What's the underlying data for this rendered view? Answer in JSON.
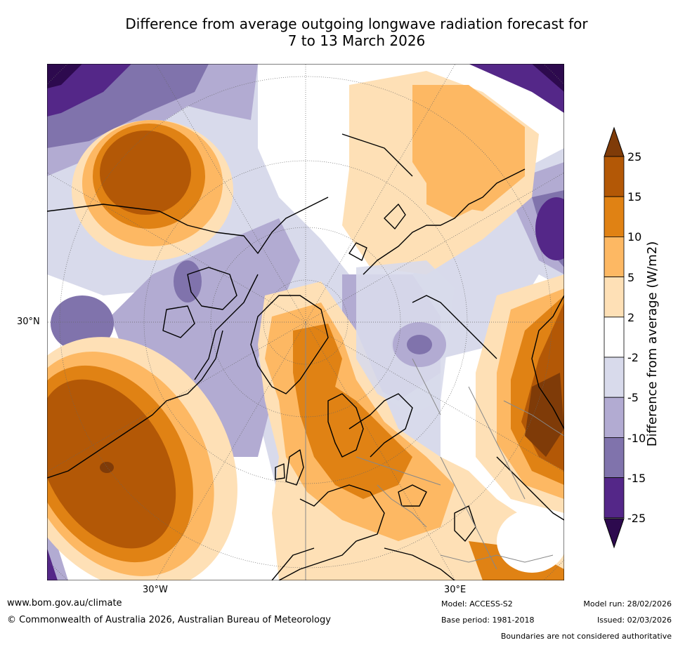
{
  "title": {
    "line1": "Difference from average outgoing longwave radiation forecast for",
    "line2": "7 to 13 March 2026"
  },
  "map": {
    "axis_labels": {
      "lat_30n": "30°N",
      "lon_30w": "30°W",
      "lon_30e": "30°E"
    },
    "colors": {
      "c_m25": "#2d0a4e",
      "c_m15": "#542788",
      "c_m10": "#8073ac",
      "c_m5": "#b2abd2",
      "c_m2": "#d8daeb",
      "c_0": "#ffffff",
      "c_2": "#fee0b6",
      "c_5": "#fdb863",
      "c_10": "#e08214",
      "c_15": "#b35806",
      "c_25": "#7f3b08"
    }
  },
  "colorbar": {
    "title": "Difference from average (W/m2)",
    "ticks": [
      "25",
      "15",
      "10",
      "5",
      "2",
      "-2",
      "-5",
      "-10",
      "-15",
      "-25"
    ],
    "colors": [
      "#7f3b08",
      "#b35806",
      "#e08214",
      "#fdb863",
      "#fee0b6",
      "#ffffff",
      "#d8daeb",
      "#b2abd2",
      "#8073ac",
      "#542788",
      "#2d0a4e"
    ]
  },
  "footer": {
    "website": "www.bom.gov.au/climate",
    "copyright": "© Commonwealth of Australia 2026, Australian Bureau of Meteorology",
    "model": "Model: ACCESS-S2",
    "base_period": "Base period: 1981-2018",
    "model_run": "Model run: 28/02/2026",
    "issued": "Issued: 02/03/2026",
    "disclaimer": "Boundaries are not considered authoritative"
  }
}
